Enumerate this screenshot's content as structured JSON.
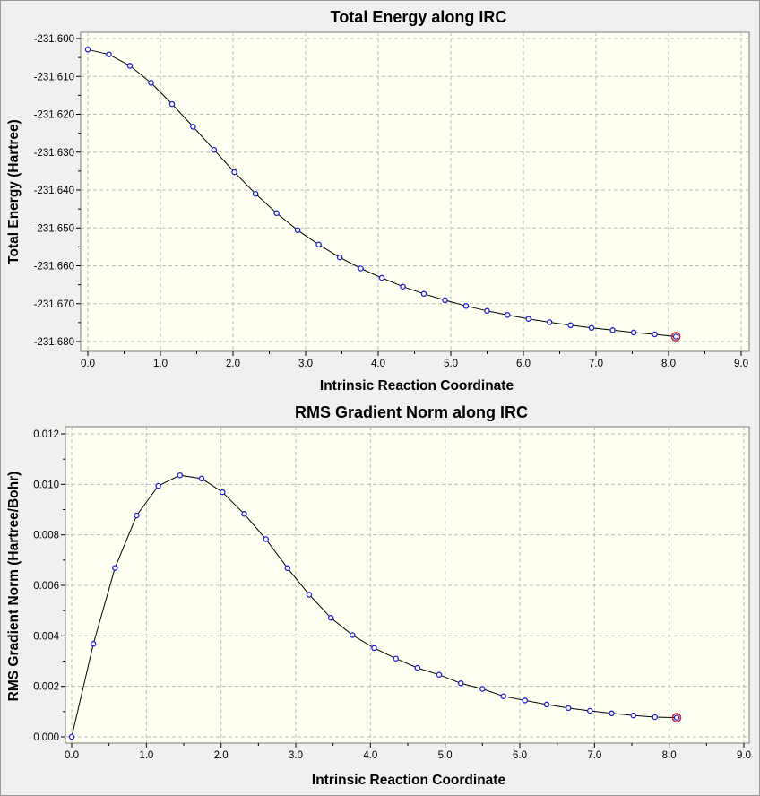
{
  "chart_data": [
    {
      "type": "line",
      "title": "Total Energy along IRC",
      "xlabel": "Intrinsic Reaction Coordinate",
      "ylabel": "Total Energy (Hartree)",
      "xlim": [
        0.0,
        9.0
      ],
      "ylim": [
        -231.68,
        -231.6
      ],
      "x_ticks": [
        "0.0",
        "1.0",
        "2.0",
        "3.0",
        "4.0",
        "5.0",
        "6.0",
        "7.0",
        "8.0",
        "9.0"
      ],
      "y_ticks": [
        "-231.600",
        "-231.610",
        "-231.620",
        "-231.630",
        "-231.640",
        "-231.650",
        "-231.660",
        "-231.670",
        "-231.680"
      ],
      "grid": true,
      "highlighted_point": "last",
      "colors": {
        "line": "#000000",
        "marker": "#1f1fd6",
        "highlight": "#d21b1b",
        "plot_background": "#fffff2"
      },
      "series": [
        {
          "x": [
            0.0,
            0.29,
            0.58,
            0.87,
            1.16,
            1.45,
            1.74,
            2.02,
            2.31,
            2.6,
            2.89,
            3.18,
            3.47,
            3.76,
            4.05,
            4.34,
            4.63,
            4.92,
            5.21,
            5.5,
            5.78,
            6.07,
            6.36,
            6.65,
            6.94,
            7.23,
            7.52,
            7.81,
            8.1
          ],
          "y": [
            -231.6029,
            -231.6042,
            -231.6072,
            -231.6117,
            -231.6173,
            -231.6233,
            -231.6294,
            -231.6353,
            -231.641,
            -231.6461,
            -231.6506,
            -231.6544,
            -231.6578,
            -231.6607,
            -231.6632,
            -231.6655,
            -231.6674,
            -231.6691,
            -231.6706,
            -231.6719,
            -231.673,
            -231.674,
            -231.6749,
            -231.6757,
            -231.6764,
            -231.677,
            -231.6776,
            -231.6781,
            -231.6787
          ]
        }
      ]
    },
    {
      "type": "line",
      "title": "RMS Gradient Norm along IRC",
      "xlabel": "Intrinsic Reaction Coordinate",
      "ylabel": "RMS Gradient Norm (Hartree/Bohr)",
      "xlim": [
        0.0,
        9.0
      ],
      "ylim": [
        0.0,
        0.012
      ],
      "x_ticks": [
        "0.0",
        "1.0",
        "2.0",
        "3.0",
        "4.0",
        "5.0",
        "6.0",
        "7.0",
        "8.0",
        "9.0"
      ],
      "y_ticks": [
        "0.012",
        "0.010",
        "0.008",
        "0.006",
        "0.004",
        "0.002",
        "0.000"
      ],
      "grid": true,
      "highlighted_point": "last",
      "colors": {
        "line": "#000000",
        "marker": "#1f1fd6",
        "highlight": "#d21b1b",
        "plot_background": "#fffff2"
      },
      "series": [
        {
          "x": [
            0.0,
            0.29,
            0.58,
            0.87,
            1.16,
            1.45,
            1.74,
            2.02,
            2.31,
            2.6,
            2.89,
            3.18,
            3.47,
            3.76,
            4.05,
            4.34,
            4.63,
            4.92,
            5.21,
            5.5,
            5.78,
            6.07,
            6.36,
            6.65,
            6.94,
            7.23,
            7.52,
            7.81,
            8.1
          ],
          "y": [
            0.0,
            0.00368,
            0.00669,
            0.00877,
            0.00994,
            0.01036,
            0.01023,
            0.00969,
            0.00883,
            0.00783,
            0.00668,
            0.00563,
            0.00471,
            0.00403,
            0.00352,
            0.0031,
            0.00273,
            0.00246,
            0.00212,
            0.0019,
            0.00161,
            0.00144,
            0.00128,
            0.00114,
            0.00103,
            0.00093,
            0.00085,
            0.00078,
            0.00076
          ]
        }
      ]
    }
  ]
}
